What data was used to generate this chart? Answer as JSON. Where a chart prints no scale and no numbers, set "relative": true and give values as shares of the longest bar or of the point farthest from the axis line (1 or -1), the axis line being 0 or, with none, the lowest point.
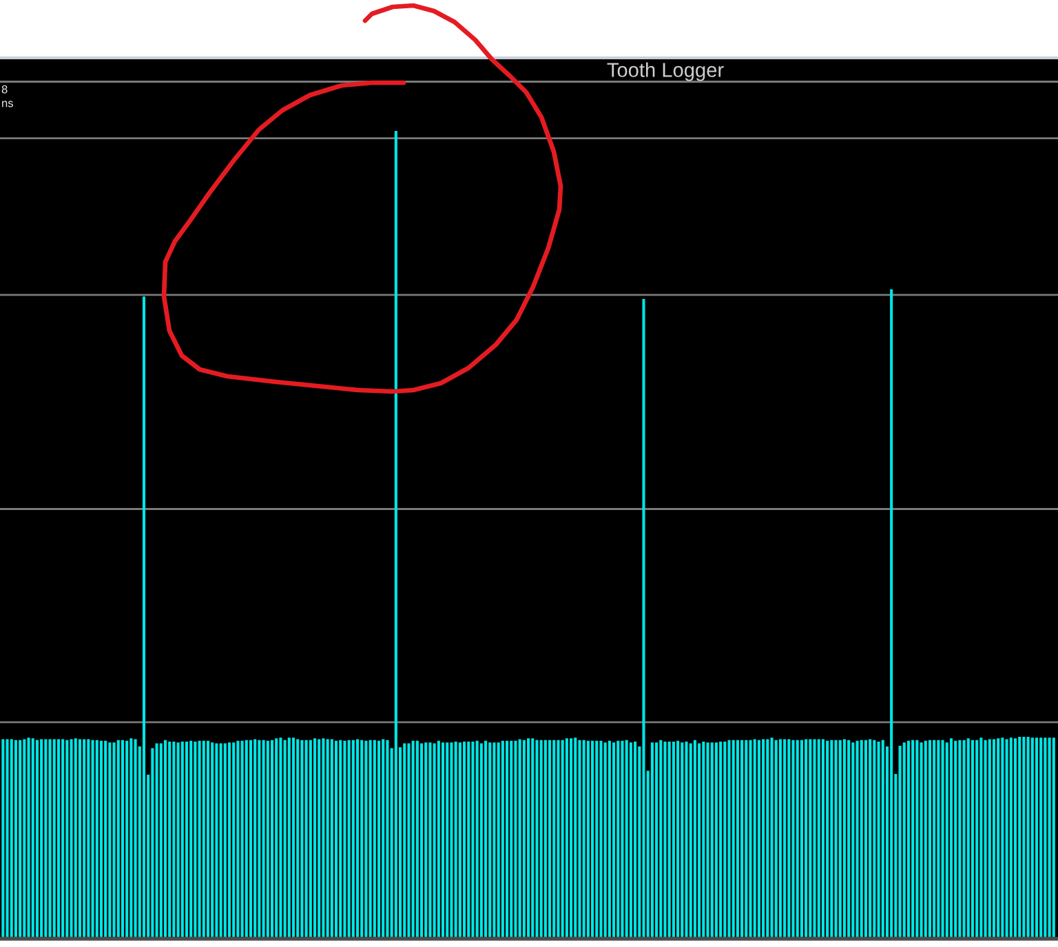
{
  "chart_data": {
    "type": "bar",
    "title": "Tooth Logger",
    "relative": true,
    "color": "#00e6e6",
    "annotations": [
      "8",
      "ns"
    ],
    "ref_lines": [
      {
        "axis": "y",
        "value": 0.268,
        "color": "#7a7a7a"
      },
      {
        "axis": "y",
        "value": 0.532,
        "color": "#7a7a7a"
      },
      {
        "axis": "y",
        "value": 0.797,
        "color": "#7a7a7a"
      },
      {
        "axis": "y",
        "value": 0.991,
        "color": "#7a7a7a"
      },
      {
        "axis": "y",
        "value": 1.061,
        "color": "#7a7a7a"
      }
    ],
    "categories": [
      null,
      null,
      null,
      null,
      null,
      null,
      null,
      null,
      null,
      null,
      null,
      null,
      null,
      null,
      null,
      null,
      null,
      null,
      null,
      null,
      null,
      null,
      null,
      null,
      null,
      null,
      null,
      null,
      null,
      null,
      null,
      null,
      null,
      null,
      null,
      null,
      null,
      null,
      null,
      null,
      null,
      null,
      null,
      null,
      null,
      null,
      null,
      null,
      null,
      null,
      null,
      null,
      null,
      null,
      null,
      null,
      null,
      null,
      null,
      null,
      null,
      null,
      null,
      null,
      null,
      null,
      null,
      null,
      null,
      null,
      null,
      null,
      null,
      null,
      null,
      null,
      null,
      null,
      null,
      null,
      null,
      null,
      null,
      null,
      null,
      null,
      null,
      null,
      null,
      null,
      null,
      null,
      null,
      null,
      null,
      null,
      null,
      null,
      null,
      null,
      null,
      null,
      null,
      null,
      null,
      null,
      null,
      null,
      null,
      null,
      null,
      null,
      null,
      null,
      null,
      null,
      null,
      null,
      null,
      null,
      null,
      null,
      null,
      null,
      null,
      null,
      null,
      null,
      null,
      null,
      null,
      null,
      null,
      null,
      null,
      null,
      null,
      null,
      null,
      null,
      null,
      null,
      null,
      null,
      null,
      null,
      null,
      null,
      null,
      null,
      null,
      null,
      null,
      null,
      null,
      null,
      null,
      null,
      null,
      null,
      null,
      null,
      null,
      null,
      null,
      null,
      null,
      null,
      null,
      null,
      null,
      null,
      null,
      null,
      null,
      null,
      null,
      null,
      null,
      null,
      null,
      null,
      null,
      null,
      null,
      null,
      null,
      null,
      null,
      null,
      null,
      null,
      null,
      null,
      null,
      null,
      null,
      null,
      null,
      null,
      null,
      null,
      null,
      null,
      null,
      null,
      null,
      null,
      null,
      null,
      null,
      null,
      null,
      null,
      null,
      null,
      null,
      null,
      null,
      null,
      null,
      null,
      null,
      null,
      null,
      null,
      null,
      null,
      null,
      null,
      null,
      null,
      null,
      null,
      null,
      null,
      null,
      null,
      null,
      null,
      null,
      null,
      null,
      null,
      null,
      null,
      null
    ],
    "values": [
      0.247,
      0.247,
      0.247,
      0.246,
      0.246,
      0.247,
      0.249,
      0.248,
      0.246,
      0.247,
      0.247,
      0.247,
      0.247,
      0.247,
      0.247,
      0.246,
      0.247,
      0.248,
      0.247,
      0.247,
      0.247,
      0.246,
      0.246,
      0.245,
      0.245,
      0.243,
      0.243,
      0.246,
      0.246,
      0.245,
      0.248,
      0.247,
      0.238,
      0.795,
      0.203,
      0.236,
      0.242,
      0.242,
      0.246,
      0.244,
      0.244,
      0.243,
      0.244,
      0.244,
      0.245,
      0.244,
      0.245,
      0.245,
      0.245,
      0.243,
      0.242,
      0.242,
      0.242,
      0.243,
      0.243,
      0.245,
      0.245,
      0.246,
      0.246,
      0.247,
      0.246,
      0.246,
      0.245,
      0.246,
      0.248,
      0.249,
      0.246,
      0.249,
      0.249,
      0.247,
      0.246,
      0.246,
      0.246,
      0.248,
      0.247,
      0.248,
      0.247,
      0.247,
      0.245,
      0.246,
      0.245,
      0.246,
      0.246,
      0.247,
      0.246,
      0.245,
      0.246,
      0.246,
      0.245,
      0.247,
      0.246,
      0.236,
      1.0,
      0.237,
      0.242,
      0.242,
      0.245,
      0.245,
      0.242,
      0.243,
      0.243,
      0.242,
      0.245,
      0.243,
      0.243,
      0.243,
      0.244,
      0.243,
      0.244,
      0.244,
      0.244,
      0.245,
      0.242,
      0.245,
      0.243,
      0.243,
      0.243,
      0.245,
      0.245,
      0.245,
      0.245,
      0.247,
      0.246,
      0.248,
      0.248,
      0.246,
      0.246,
      0.246,
      0.246,
      0.246,
      0.246,
      0.246,
      0.248,
      0.248,
      0.249,
      0.246,
      0.246,
      0.245,
      0.245,
      0.245,
      0.245,
      0.243,
      0.245,
      0.243,
      0.245,
      0.245,
      0.246,
      0.243,
      0.244,
      0.238,
      0.792,
      0.208,
      0.243,
      0.243,
      0.246,
      0.244,
      0.244,
      0.244,
      0.245,
      0.243,
      0.244,
      0.242,
      0.246,
      0.242,
      0.244,
      0.243,
      0.243,
      0.243,
      0.244,
      0.244,
      0.246,
      0.246,
      0.246,
      0.246,
      0.246,
      0.246,
      0.247,
      0.246,
      0.247,
      0.247,
      0.249,
      0.246,
      0.247,
      0.247,
      0.247,
      0.246,
      0.246,
      0.246,
      0.247,
      0.247,
      0.247,
      0.247,
      0.247,
      0.245,
      0.246,
      0.246,
      0.246,
      0.247,
      0.246,
      0.243,
      0.245,
      0.246,
      0.246,
      0.247,
      0.246,
      0.244,
      0.246,
      0.238,
      0.804,
      0.204,
      0.239,
      0.243,
      0.245,
      0.246,
      0.246,
      0.243,
      0.245,
      0.246,
      0.246,
      0.246,
      0.246,
      0.243,
      0.248,
      0.245,
      0.246,
      0.246,
      0.248,
      0.246,
      0.246,
      0.249,
      0.246,
      0.247,
      0.247,
      0.248,
      0.249,
      0.247,
      0.249,
      0.248,
      0.25,
      0.25,
      0.25,
      0.249,
      0.249,
      0.249,
      0.249,
      0.249,
      0.249
    ]
  }
}
